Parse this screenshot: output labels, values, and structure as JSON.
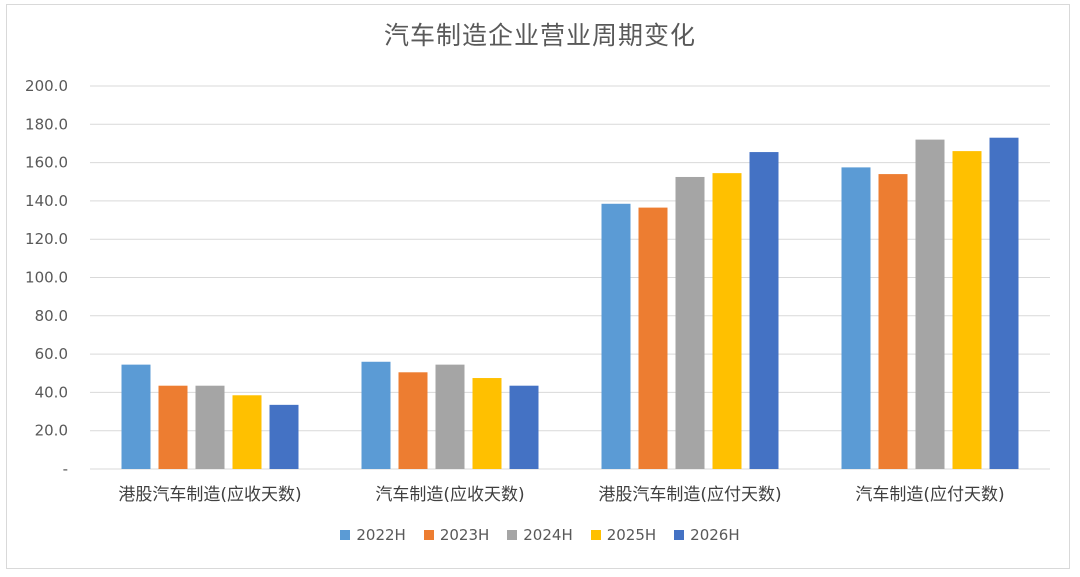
{
  "chart_data": {
    "type": "bar",
    "title": "汽车制造企业营业周期变化",
    "categories": [
      "港股汽车制造(应收天数)",
      "汽车制造(应收天数)",
      "港股汽车制造(应付天数)",
      "汽车制造(应付天数)"
    ],
    "series": [
      {
        "name": "2022H",
        "color": "#5B9BD5",
        "values": [
          54.5,
          56.0,
          138.5,
          157.5
        ]
      },
      {
        "name": "2023H",
        "color": "#ED7D31",
        "values": [
          43.5,
          50.5,
          136.5,
          154.0
        ]
      },
      {
        "name": "2024H",
        "color": "#A5A5A5",
        "values": [
          43.5,
          54.5,
          152.5,
          172.0
        ]
      },
      {
        "name": "2025H",
        "color": "#FFC000",
        "values": [
          38.5,
          47.5,
          154.5,
          166.0
        ]
      },
      {
        "name": "2026H",
        "color": "#4472C4",
        "values": [
          33.5,
          43.5,
          165.5,
          173.0
        ]
      }
    ],
    "yticks": [
      "-",
      "20.0",
      "40.0",
      "60.0",
      "80.0",
      "100.0",
      "120.0",
      "140.0",
      "160.0",
      "180.0",
      "200.0"
    ],
    "ylim": [
      0,
      200
    ],
    "grid": true,
    "legend_position": "bottom"
  }
}
